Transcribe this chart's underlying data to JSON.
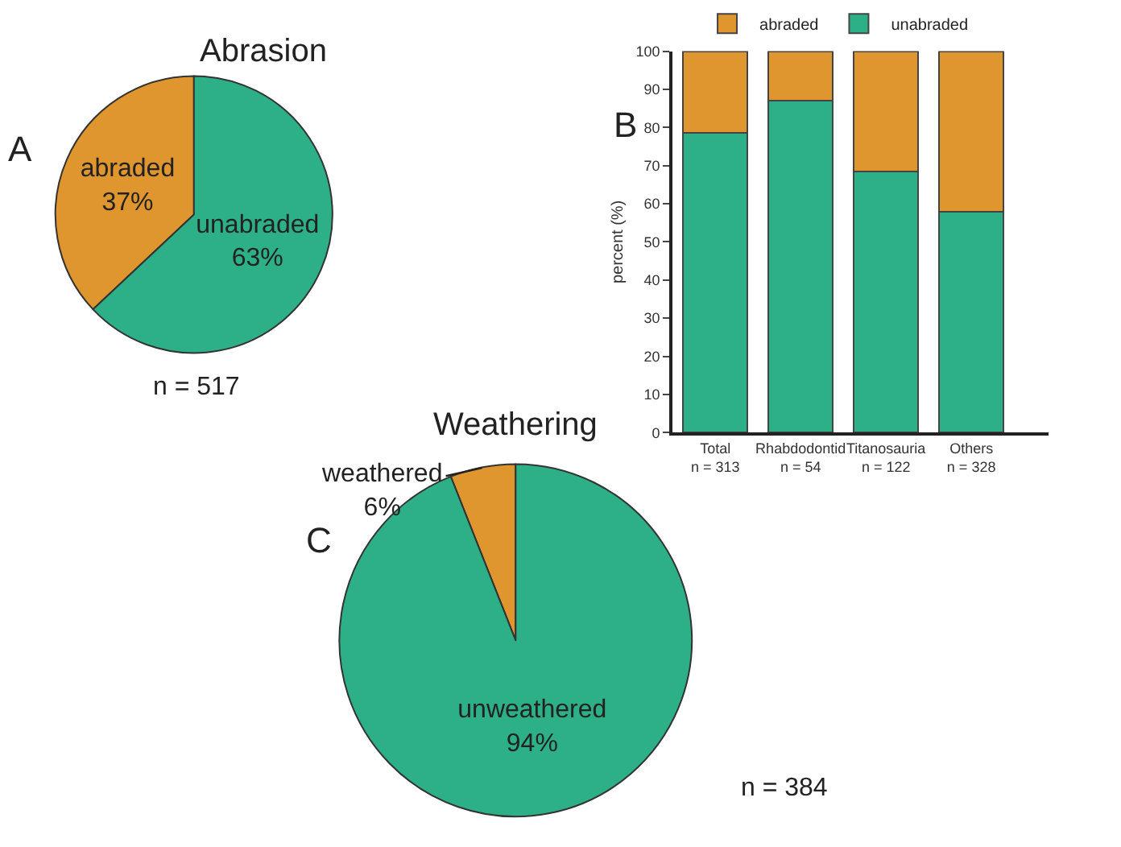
{
  "chart_data": [
    {
      "type": "pie",
      "title": "Abrasion",
      "categories": [
        "abraded",
        "unabraded"
      ],
      "values": [
        37,
        63
      ],
      "value_labels": [
        "37%",
        "63%"
      ],
      "colors": [
        "#e0962f",
        "#2db087"
      ],
      "annotations": [
        "A",
        "n = 517"
      ],
      "legend": false
    },
    {
      "type": "bar",
      "stacked": true,
      "categories": [
        "Total\nn = 313",
        "Rhabdodontid\nn = 54",
        "Titanosauria\nn = 122",
        "Others\nn = 328"
      ],
      "ylabel": "percent (%)",
      "ylim": [
        0,
        100
      ],
      "yticks": [
        0,
        10,
        20,
        30,
        40,
        50,
        60,
        70,
        80,
        90,
        100
      ],
      "legend": "top",
      "annotations": [
        "B"
      ],
      "series": [
        {
          "name": "unabraded",
          "color": "#2db087",
          "values": [
            78.5,
            87,
            68.5,
            58
          ]
        },
        {
          "name": "abraded",
          "color": "#e0962f",
          "values": [
            21.5,
            13,
            31.5,
            42
          ]
        }
      ]
    },
    {
      "type": "pie",
      "title": "Weathering",
      "categories": [
        "weathered",
        "unweathered"
      ],
      "values": [
        6,
        94
      ],
      "value_labels": [
        "6%",
        "94%"
      ],
      "colors": [
        "#e0962f",
        "#2db087"
      ],
      "annotations": [
        "C",
        "n = 384"
      ],
      "legend": false
    }
  ]
}
